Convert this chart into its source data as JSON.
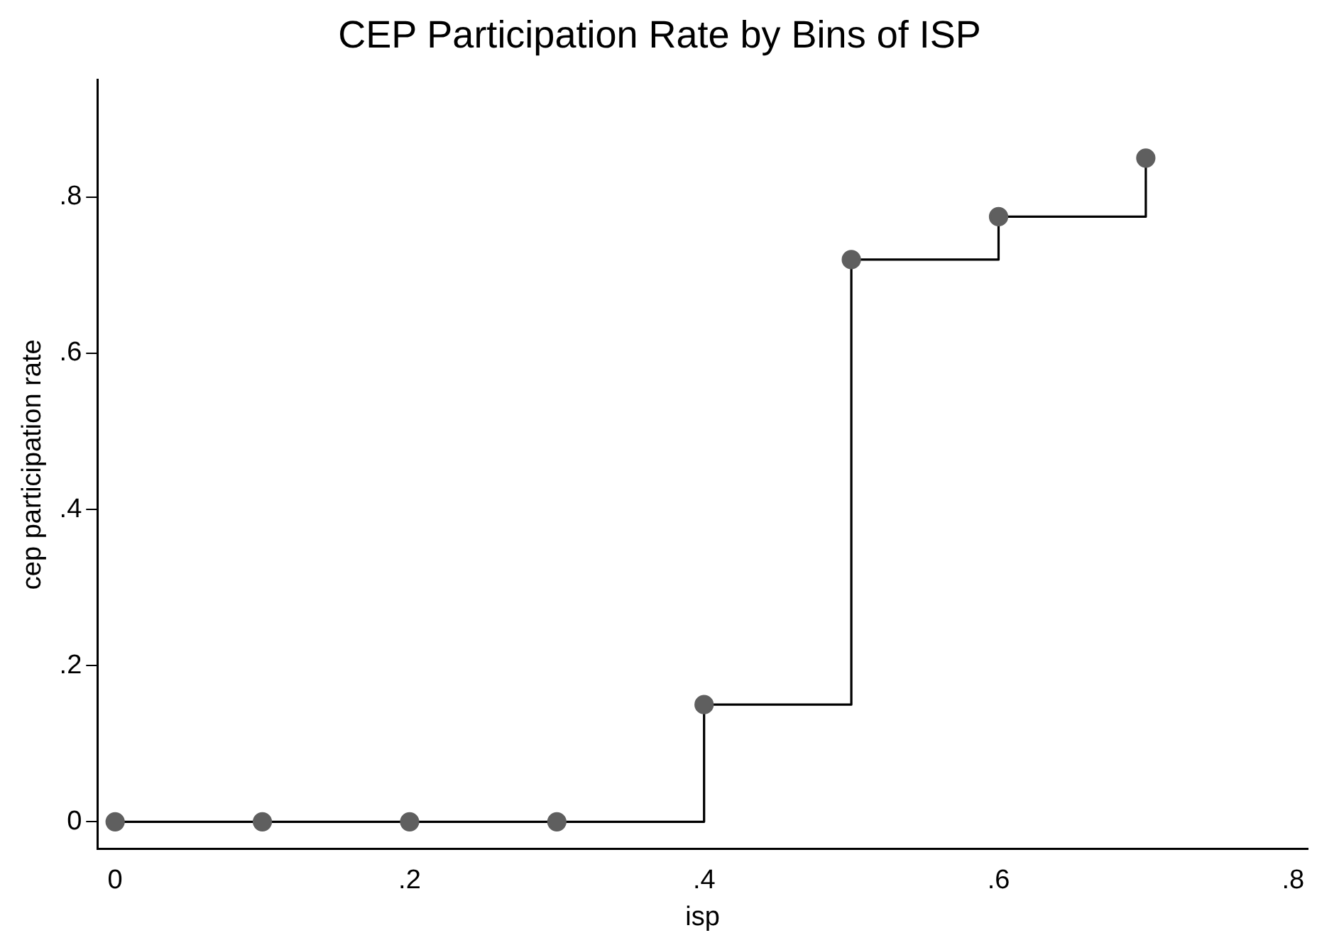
{
  "chart_data": {
    "type": "step",
    "title": "CEP Participation Rate by Bins of ISP",
    "xlabel": "isp",
    "ylabel": "cep participation rate",
    "x": [
      0,
      0.1,
      0.2,
      0.3,
      0.4,
      0.5,
      0.6,
      0.7
    ],
    "series": [
      {
        "color": "#5f5f5f",
        "values": [
          0,
          0,
          0,
          0,
          0.15,
          0.72,
          0.775,
          0.85
        ]
      }
    ],
    "xlim": [
      -0.012,
      0.81
    ],
    "xticks": [
      0,
      {
        "value": 0.2,
        "label": ".2"
      },
      {
        "value": 0.4,
        "label": ".4"
      },
      {
        "value": 0.6,
        "label": ".6"
      },
      {
        "value": 0.8,
        "label": ".8"
      }
    ],
    "ylim": [
      -0.035,
      0.95
    ],
    "yticks": [
      0,
      {
        "value": 0.2,
        "label": ".2"
      },
      {
        "value": 0.4,
        "label": ".4"
      },
      {
        "value": 0.6,
        "label": ".6"
      },
      {
        "value": 0.8,
        "label": ".8"
      }
    ],
    "grid": false,
    "legend": false,
    "marker": "circle",
    "line_style": "solid"
  }
}
